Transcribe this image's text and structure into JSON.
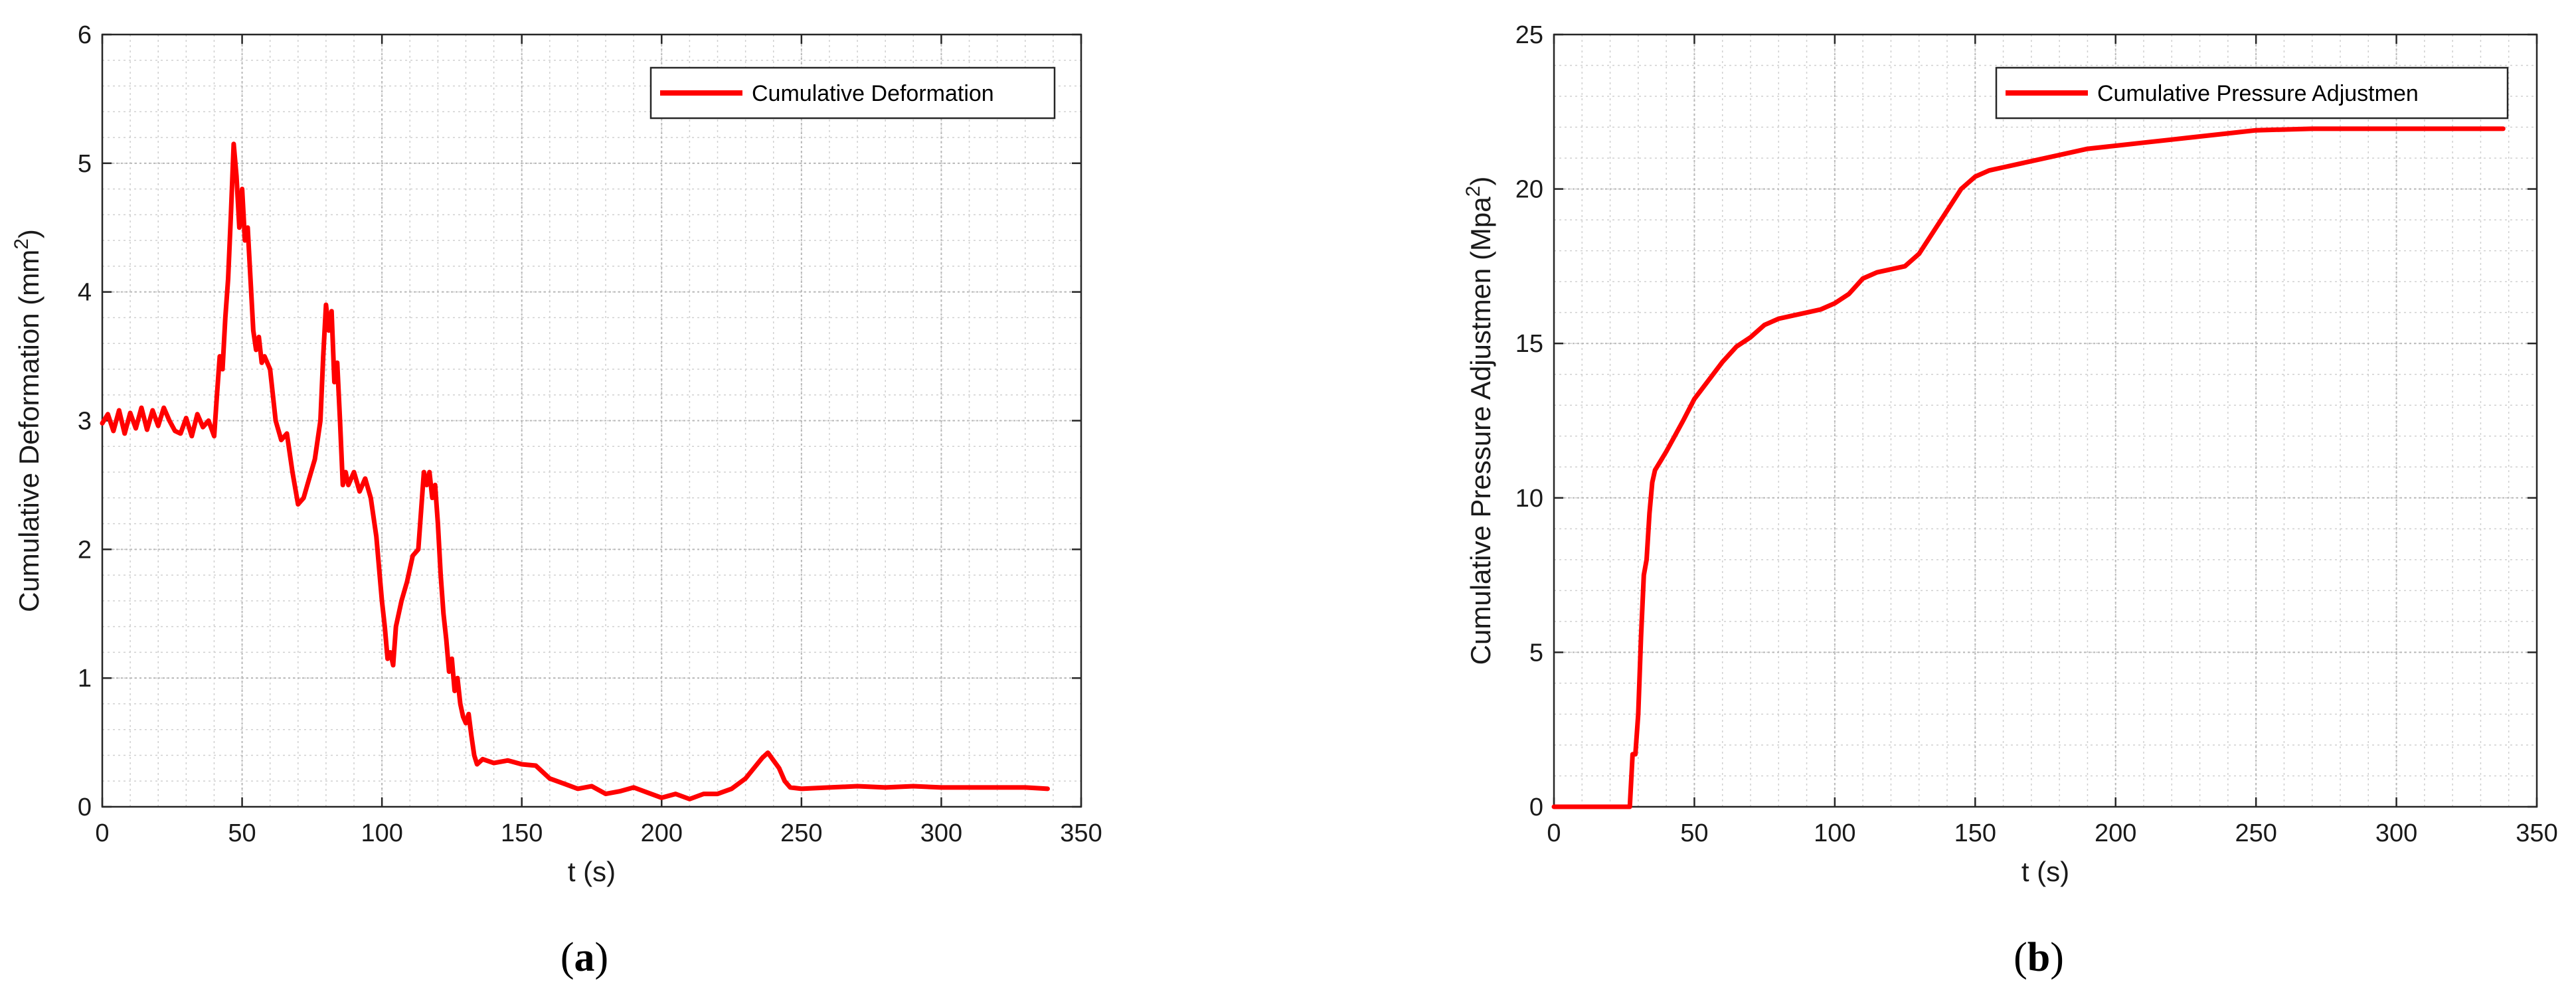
{
  "chart_data": [
    {
      "type": "line",
      "panel_label": "a",
      "xlabel": "t (s)",
      "ylabel": "Cumulative Deformation (mm",
      "ylabel_superscript": "2",
      "ylabel_close": ")",
      "xlim": [
        0,
        350
      ],
      "ylim": [
        0,
        6
      ],
      "xticks": [
        0,
        50,
        100,
        150,
        200,
        250,
        300,
        350
      ],
      "yticks": [
        0,
        1,
        2,
        3,
        4,
        5,
        6
      ],
      "grid": "major and minor",
      "legend_position": "top-right",
      "color": "#ff0000",
      "series": [
        {
          "name": "Cumulative Deformation",
          "x": [
            0,
            2,
            4,
            6,
            8,
            10,
            12,
            14,
            16,
            18,
            20,
            22,
            24,
            26,
            28,
            30,
            32,
            34,
            36,
            38,
            40,
            41,
            42,
            43,
            44,
            45,
            46,
            47,
            48,
            49,
            50,
            51,
            52,
            53,
            54,
            55,
            56,
            57,
            58,
            60,
            62,
            64,
            66,
            68,
            70,
            72,
            74,
            76,
            78,
            79,
            80,
            81,
            82,
            83,
            84,
            85,
            86,
            87,
            88,
            90,
            92,
            94,
            96,
            98,
            100,
            101,
            102,
            103,
            104,
            105,
            107,
            109,
            111,
            113,
            114,
            115,
            116,
            117,
            118,
            119,
            120,
            121,
            122,
            123,
            124,
            125,
            126,
            127,
            128,
            129,
            130,
            131,
            132,
            133,
            134,
            136,
            140,
            145,
            150,
            155,
            160,
            165,
            170,
            175,
            180,
            185,
            190,
            195,
            200,
            205,
            210,
            215,
            220,
            225,
            230,
            233,
            236,
            238,
            240,
            242,
            244,
            246,
            250,
            260,
            270,
            280,
            290,
            300,
            310,
            320,
            330,
            338
          ],
          "y": [
            2.98,
            3.05,
            2.92,
            3.08,
            2.9,
            3.06,
            2.94,
            3.1,
            2.93,
            3.08,
            2.96,
            3.1,
            3.0,
            2.92,
            2.9,
            3.02,
            2.88,
            3.05,
            2.95,
            3.0,
            2.88,
            3.2,
            3.5,
            3.4,
            3.8,
            4.1,
            4.6,
            5.15,
            4.9,
            4.5,
            4.8,
            4.4,
            4.5,
            4.1,
            3.7,
            3.55,
            3.65,
            3.45,
            3.5,
            3.4,
            3.0,
            2.85,
            2.9,
            2.6,
            2.35,
            2.4,
            2.55,
            2.7,
            3.0,
            3.5,
            3.9,
            3.7,
            3.85,
            3.3,
            3.45,
            3.0,
            2.5,
            2.6,
            2.5,
            2.6,
            2.45,
            2.55,
            2.4,
            2.1,
            1.6,
            1.4,
            1.15,
            1.2,
            1.1,
            1.4,
            1.6,
            1.75,
            1.95,
            2.0,
            2.3,
            2.6,
            2.5,
            2.6,
            2.4,
            2.5,
            2.2,
            1.8,
            1.5,
            1.3,
            1.05,
            1.15,
            0.9,
            1.0,
            0.8,
            0.7,
            0.65,
            0.72,
            0.55,
            0.4,
            0.33,
            0.37,
            0.34,
            0.36,
            0.33,
            0.32,
            0.22,
            0.18,
            0.14,
            0.16,
            0.1,
            0.12,
            0.15,
            0.11,
            0.07,
            0.1,
            0.06,
            0.1,
            0.1,
            0.14,
            0.22,
            0.3,
            0.38,
            0.42,
            0.36,
            0.3,
            0.2,
            0.15,
            0.14,
            0.15,
            0.16,
            0.15,
            0.16,
            0.15,
            0.15,
            0.15,
            0.15,
            0.14
          ]
        }
      ]
    },
    {
      "type": "line",
      "panel_label": "b",
      "xlabel": "t (s)",
      "ylabel": "Cumulative Pressure Adjustmen (Mpa",
      "ylabel_superscript": "2",
      "ylabel_close": ")",
      "xlim": [
        0,
        350
      ],
      "ylim": [
        0,
        25
      ],
      "xticks": [
        0,
        50,
        100,
        150,
        200,
        250,
        300,
        350
      ],
      "yticks": [
        0,
        5,
        10,
        15,
        20,
        25
      ],
      "grid": "major and minor",
      "legend_position": "top-right",
      "color": "#ff0000",
      "series": [
        {
          "name": "Cumulative Pressure Adjustmen",
          "x": [
            0,
            27,
            28,
            29,
            30,
            31,
            32,
            33,
            34,
            35,
            36,
            38,
            40,
            43,
            46,
            50,
            55,
            60,
            65,
            70,
            75,
            80,
            85,
            90,
            95,
            100,
            105,
            110,
            115,
            120,
            125,
            130,
            135,
            140,
            145,
            150,
            155,
            160,
            170,
            180,
            190,
            200,
            210,
            220,
            230,
            240,
            250,
            270,
            300,
            338
          ],
          "y": [
            0,
            0,
            1.7,
            1.7,
            3.0,
            5.5,
            7.5,
            8.0,
            9.5,
            10.5,
            10.9,
            11.2,
            11.5,
            12.0,
            12.5,
            13.2,
            13.8,
            14.4,
            14.9,
            15.2,
            15.6,
            15.8,
            15.9,
            16.0,
            16.1,
            16.3,
            16.6,
            17.1,
            17.3,
            17.4,
            17.5,
            17.9,
            18.6,
            19.3,
            20.0,
            20.4,
            20.6,
            20.7,
            20.9,
            21.1,
            21.3,
            21.4,
            21.5,
            21.6,
            21.7,
            21.8,
            21.9,
            21.95,
            21.95,
            21.95
          ]
        }
      ]
    }
  ]
}
